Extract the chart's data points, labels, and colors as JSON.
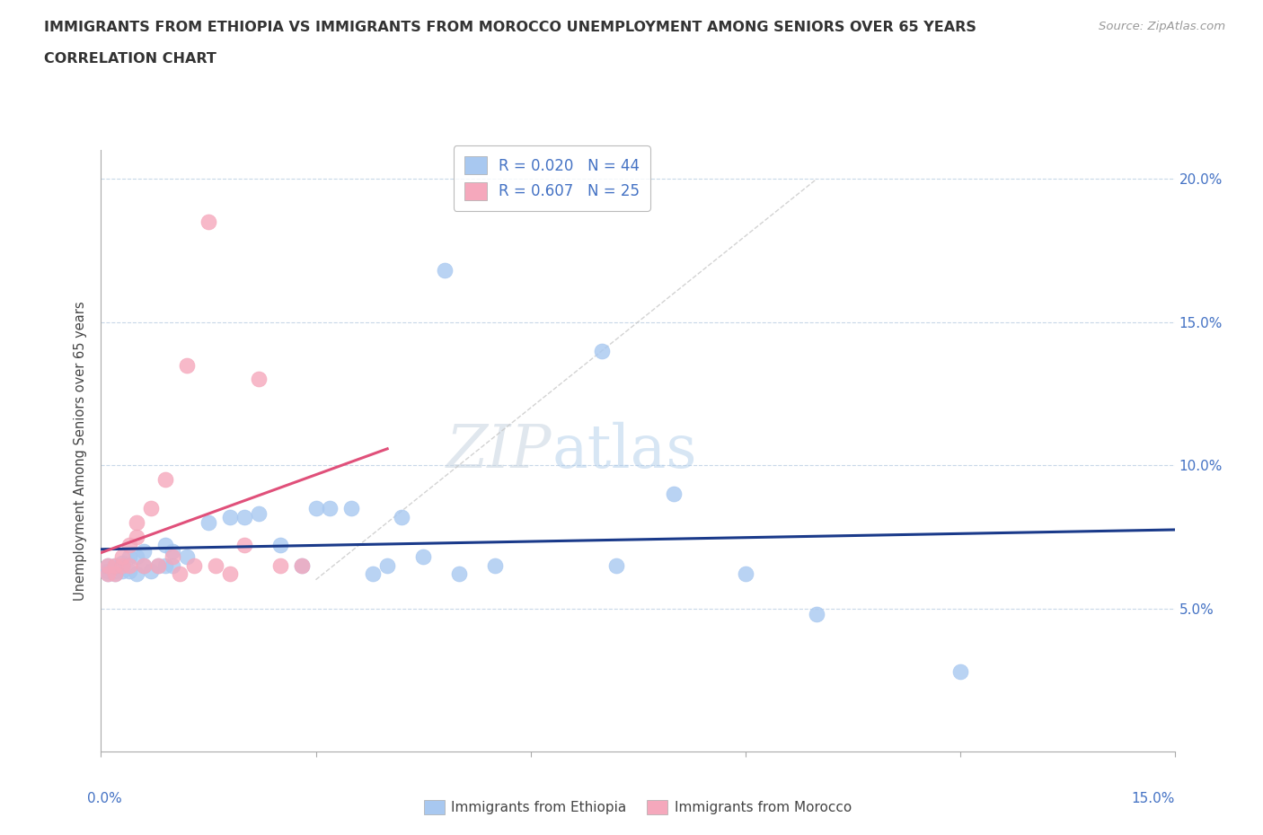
{
  "title_line1": "IMMIGRANTS FROM ETHIOPIA VS IMMIGRANTS FROM MOROCCO UNEMPLOYMENT AMONG SENIORS OVER 65 YEARS",
  "title_line2": "CORRELATION CHART",
  "source": "Source: ZipAtlas.com",
  "ylabel": "Unemployment Among Seniors over 65 years",
  "xlim": [
    0,
    0.15
  ],
  "ylim": [
    0,
    0.21
  ],
  "yticks": [
    0.05,
    0.1,
    0.15,
    0.2
  ],
  "ytick_labels": [
    "5.0%",
    "10.0%",
    "15.0%",
    "20.0%"
  ],
  "xticks": [
    0.0,
    0.03,
    0.06,
    0.09,
    0.12,
    0.15
  ],
  "ethiopia_R": 0.02,
  "ethiopia_N": 44,
  "morocco_R": 0.607,
  "morocco_N": 25,
  "ethiopia_color": "#a8c8f0",
  "morocco_color": "#f5a8bc",
  "ethiopia_line_color": "#1a3a8a",
  "morocco_line_color": "#e0507a",
  "diag_line_color": "#c8c8c8",
  "watermark_zip": "ZIP",
  "watermark_atlas": "atlas",
  "ethiopia_x": [
    0.001,
    0.001,
    0.001,
    0.002,
    0.002,
    0.002,
    0.003,
    0.003,
    0.003,
    0.004,
    0.004,
    0.005,
    0.005,
    0.006,
    0.006,
    0.007,
    0.008,
    0.009,
    0.009,
    0.01,
    0.01,
    0.012,
    0.015,
    0.018,
    0.02,
    0.022,
    0.025,
    0.028,
    0.03,
    0.032,
    0.035,
    0.038,
    0.04,
    0.042,
    0.045,
    0.048,
    0.05,
    0.055,
    0.07,
    0.072,
    0.08,
    0.09,
    0.1,
    0.12
  ],
  "ethiopia_y": [
    0.062,
    0.063,
    0.065,
    0.062,
    0.063,
    0.065,
    0.063,
    0.065,
    0.066,
    0.063,
    0.068,
    0.062,
    0.068,
    0.065,
    0.07,
    0.063,
    0.065,
    0.065,
    0.072,
    0.065,
    0.07,
    0.068,
    0.08,
    0.082,
    0.082,
    0.083,
    0.072,
    0.065,
    0.085,
    0.085,
    0.085,
    0.062,
    0.065,
    0.082,
    0.068,
    0.168,
    0.062,
    0.065,
    0.14,
    0.065,
    0.09,
    0.062,
    0.048,
    0.028
  ],
  "morocco_x": [
    0.001,
    0.001,
    0.002,
    0.002,
    0.003,
    0.003,
    0.004,
    0.004,
    0.005,
    0.005,
    0.006,
    0.007,
    0.008,
    0.009,
    0.01,
    0.011,
    0.012,
    0.013,
    0.015,
    0.016,
    0.018,
    0.02,
    0.022,
    0.025,
    0.028
  ],
  "morocco_y": [
    0.062,
    0.065,
    0.062,
    0.065,
    0.065,
    0.068,
    0.065,
    0.072,
    0.075,
    0.08,
    0.065,
    0.085,
    0.065,
    0.095,
    0.068,
    0.062,
    0.135,
    0.065,
    0.185,
    0.065,
    0.062,
    0.072,
    0.13,
    0.065,
    0.065
  ]
}
